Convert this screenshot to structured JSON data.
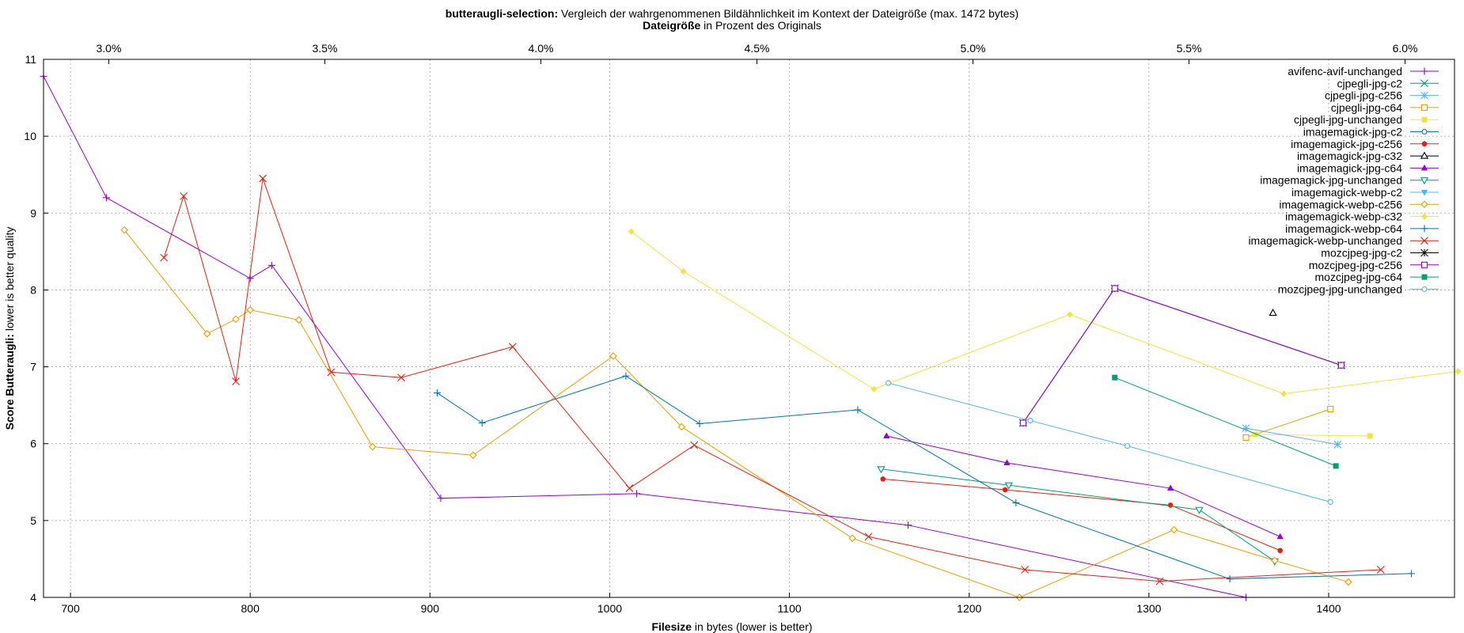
{
  "chart_data": {
    "type": "line",
    "title_bold": "butteraugli-selection:",
    "title_rest": " Vergleich der wahrgenommenen Bildähnlichkeit im Kontext der Dateigröße (max. 1472 bytes)",
    "x2label_bold": "Dateigröße",
    "x2label_rest": " in Prozent des Originals",
    "xlabel_bold": "Filesize",
    "xlabel_rest": " in bytes (lower is better)",
    "ylabel_bold": "Score Butteraugli:",
    "ylabel_rest": " lower is better quality",
    "xlim": [
      685,
      1470
    ],
    "ylim": [
      4,
      11
    ],
    "xticks": [
      700,
      800,
      900,
      1000,
      1100,
      1200,
      1300,
      1400
    ],
    "yticks": [
      4,
      5,
      6,
      7,
      8,
      9,
      10,
      11
    ],
    "x2ticks": [
      {
        "value": 721.3,
        "label": "3.0%"
      },
      {
        "value": 841.5,
        "label": "3.5%"
      },
      {
        "value": 961.7,
        "label": "4.0%"
      },
      {
        "value": 1081.9,
        "label": "4.5%"
      },
      {
        "value": 1202.1,
        "label": "5.0%"
      },
      {
        "value": 1322.3,
        "label": "5.5%"
      },
      {
        "value": 1442.5,
        "label": "6.0%"
      }
    ],
    "grid": true,
    "legend_position": "top-right",
    "series": [
      {
        "name": "avifenc-avif-unchanged",
        "color": "#9400d3",
        "marker": "plus",
        "points": [
          [
            685,
            10.78
          ],
          [
            720,
            9.2
          ],
          [
            800,
            8.15
          ],
          [
            812,
            8.32
          ],
          [
            906,
            5.29
          ],
          [
            1015,
            5.35
          ],
          [
            1166,
            4.94
          ],
          [
            1354,
            4.0
          ]
        ]
      },
      {
        "name": "cjpegli-jpg-c2",
        "color": "#009e73",
        "marker": "x",
        "points": []
      },
      {
        "name": "cjpegli-jpg-c256",
        "color": "#56b4e9",
        "marker": "star",
        "points": []
      },
      {
        "name": "cjpegli-jpg-c64",
        "color": "#e69f00",
        "marker": "square-open",
        "points": [
          [
            1354,
            6.08
          ],
          [
            1401,
            6.45
          ]
        ]
      },
      {
        "name": "cjpegli-jpg-unchanged",
        "color": "#f0e442",
        "marker": "square-filled",
        "points": [
          [
            1359,
            6.12
          ],
          [
            1423,
            6.1
          ]
        ]
      },
      {
        "name": "imagemagick-jpg-c2",
        "color": "#0072b2",
        "marker": "circle-open",
        "points": []
      },
      {
        "name": "imagemagick-jpg-c256",
        "color": "#e51e10",
        "marker": "circle-filled",
        "points": [
          [
            1152,
            5.54
          ],
          [
            1220,
            5.4
          ],
          [
            1312,
            5.2
          ],
          [
            1373,
            4.61
          ]
        ]
      },
      {
        "name": "imagemagick-jpg-c32",
        "color": "#000000",
        "marker": "triangle-open",
        "points": [
          [
            1369,
            7.7
          ]
        ]
      },
      {
        "name": "imagemagick-jpg-c64",
        "color": "#9400d3",
        "marker": "triangle-filled",
        "points": [
          [
            1154,
            6.1
          ],
          [
            1221,
            5.75
          ],
          [
            1312,
            5.42
          ],
          [
            1373,
            4.79
          ]
        ]
      },
      {
        "name": "imagemagick-jpg-unchanged",
        "color": "#009e73",
        "marker": "triangle-down-open",
        "points": [
          [
            1151,
            5.67
          ],
          [
            1222,
            5.46
          ],
          [
            1328,
            5.14
          ],
          [
            1370,
            4.47
          ]
        ]
      },
      {
        "name": "imagemagick-webp-c2",
        "color": "#56b4e9",
        "marker": "triangle-down-filled",
        "points": []
      },
      {
        "name": "imagemagick-webp-c256",
        "color": "#e69f00",
        "marker": "diamond-open",
        "points": [
          [
            730,
            8.78
          ],
          [
            776,
            7.43
          ],
          [
            792,
            7.62
          ],
          [
            800,
            7.74
          ],
          [
            827,
            7.61
          ],
          [
            868,
            5.96
          ],
          [
            924,
            5.85
          ],
          [
            1002,
            7.14
          ],
          [
            1040,
            6.22
          ],
          [
            1135,
            4.77
          ],
          [
            1228,
            4.0
          ],
          [
            1314,
            4.88
          ],
          [
            1370,
            4.48
          ],
          [
            1411,
            4.2
          ]
        ]
      },
      {
        "name": "imagemagick-webp-c32",
        "color": "#f0e442",
        "marker": "diamond-filled",
        "points": [
          [
            1012,
            8.76
          ],
          [
            1041,
            8.24
          ],
          [
            1147,
            6.71
          ],
          [
            1256,
            7.68
          ],
          [
            1375,
            6.65
          ],
          [
            1472,
            6.94
          ]
        ]
      },
      {
        "name": "imagemagick-webp-c64",
        "color": "#0072b2",
        "marker": "plus",
        "points": [
          [
            904,
            6.66
          ],
          [
            929,
            6.27
          ],
          [
            1009,
            6.88
          ],
          [
            1050,
            6.26
          ],
          [
            1138,
            6.44
          ],
          [
            1226,
            5.23
          ],
          [
            1345,
            4.24
          ],
          [
            1446,
            4.31
          ]
        ]
      },
      {
        "name": "imagemagick-webp-unchanged",
        "color": "#e51e10",
        "marker": "x",
        "points": [
          [
            752,
            8.42
          ],
          [
            763,
            9.22
          ],
          [
            792,
            6.81
          ],
          [
            807,
            9.45
          ],
          [
            845,
            6.93
          ],
          [
            884,
            6.86
          ],
          [
            946,
            7.26
          ],
          [
            1011,
            5.42
          ],
          [
            1047,
            5.98
          ],
          [
            1144,
            4.79
          ],
          [
            1231,
            4.36
          ],
          [
            1306,
            4.21
          ],
          [
            1429,
            4.36
          ]
        ]
      },
      {
        "name": "mozcjpeg-jpg-c2",
        "color": "#000000",
        "marker": "star",
        "points": [
          [
            1230,
            6.27
          ],
          [
            1281,
            8.02
          ],
          [
            1407,
            7.02
          ]
        ]
      },
      {
        "name": "mozcjpeg-jpg-c256",
        "color": "#9400d3",
        "marker": "square-open",
        "points": [
          [
            1230,
            6.27
          ],
          [
            1281,
            8.02
          ],
          [
            1407,
            7.02
          ]
        ]
      },
      {
        "name": "mozcjpeg-jpg-c64",
        "color": "#009e73",
        "marker": "square-filled",
        "points": [
          [
            1281,
            6.86
          ],
          [
            1404,
            5.71
          ]
        ]
      },
      {
        "name": "mozcjpeg-jpg-unchanged",
        "color": "#56b4e9",
        "marker": "circle-open",
        "points": [
          [
            1155,
            6.79
          ],
          [
            1234,
            6.3
          ],
          [
            1288,
            5.97
          ],
          [
            1401,
            5.24
          ]
        ]
      },
      {
        "name": "",
        "color": "#56b4e9",
        "marker": "star",
        "points": [
          [
            1354,
            6.2
          ],
          [
            1405,
            5.99
          ]
        ]
      }
    ]
  }
}
